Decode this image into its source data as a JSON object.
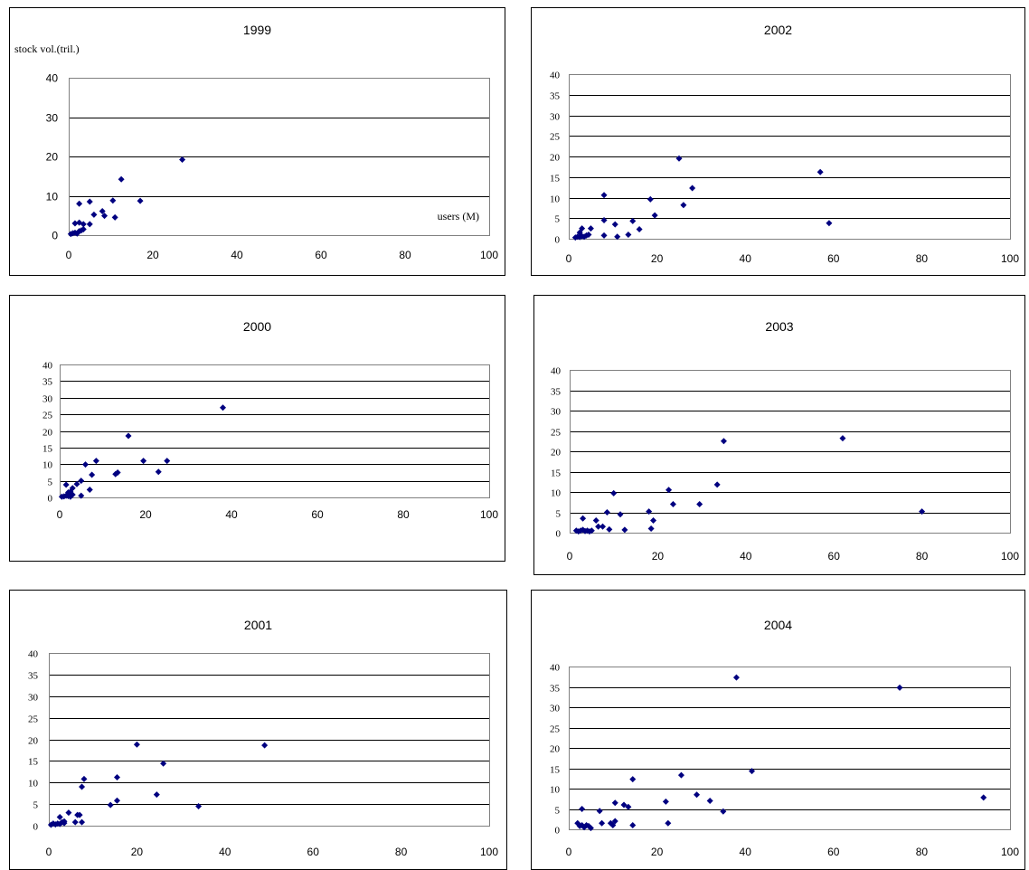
{
  "chart_data": [
    {
      "type": "scatter",
      "title": "1999",
      "ylabel": "stock vol.(tril.)",
      "xlabel": "users (M)",
      "xlim": [
        0,
        100
      ],
      "ylim": [
        0,
        40
      ],
      "x_ticks": [
        "0",
        "20",
        "40",
        "60",
        "80",
        "100"
      ],
      "y_ticks": [
        "0",
        "10",
        "20",
        "30",
        "40"
      ],
      "grid": true,
      "points": [
        [
          0.5,
          0.3
        ],
        [
          1,
          0.5
        ],
        [
          1.5,
          0.6
        ],
        [
          2,
          0.4
        ],
        [
          2.5,
          1
        ],
        [
          3,
          1.2
        ],
        [
          3.5,
          1.5
        ],
        [
          1.5,
          3
        ],
        [
          2.5,
          3.2
        ],
        [
          3.5,
          2.8
        ],
        [
          2.5,
          8
        ],
        [
          5,
          8.5
        ],
        [
          5,
          2.8
        ],
        [
          6,
          5.2
        ],
        [
          8,
          6.1
        ],
        [
          8.5,
          4.9
        ],
        [
          10.5,
          8.8
        ],
        [
          11,
          4.5
        ],
        [
          12.5,
          14.2
        ],
        [
          17,
          8.7
        ],
        [
          27,
          19.2
        ]
      ]
    },
    {
      "type": "scatter",
      "title": "2002",
      "xlim": [
        0,
        100
      ],
      "ylim": [
        0,
        40
      ],
      "x_ticks": [
        "0",
        "20",
        "40",
        "60",
        "80",
        "100"
      ],
      "y_ticks": [
        "0",
        "5",
        "10",
        "15",
        "20",
        "25",
        "30",
        "35",
        "40"
      ],
      "grid": true,
      "points": [
        [
          1.5,
          0.3
        ],
        [
          2,
          0.5
        ],
        [
          2.5,
          0.4
        ],
        [
          3,
          0.6
        ],
        [
          3.5,
          0.5
        ],
        [
          4,
          0.8
        ],
        [
          4.5,
          1
        ],
        [
          2.5,
          1.5
        ],
        [
          3,
          2.5
        ],
        [
          5,
          2.5
        ],
        [
          8,
          0.8
        ],
        [
          8,
          4.5
        ],
        [
          8,
          10.6
        ],
        [
          10.5,
          3.5
        ],
        [
          11,
          0.5
        ],
        [
          13.5,
          1
        ],
        [
          14.5,
          4.3
        ],
        [
          16,
          2.3
        ],
        [
          18.5,
          9.6
        ],
        [
          19.5,
          5.7
        ],
        [
          25,
          19.5
        ],
        [
          26,
          8.2
        ],
        [
          28,
          12.3
        ],
        [
          57,
          16.2
        ],
        [
          59,
          3.8
        ]
      ]
    },
    {
      "type": "scatter",
      "title": "2000",
      "xlim": [
        0,
        100
      ],
      "ylim": [
        0,
        40
      ],
      "x_ticks": [
        "0",
        "20",
        "40",
        "60",
        "80",
        "100"
      ],
      "y_ticks": [
        "0",
        "5",
        "10",
        "15",
        "20",
        "25",
        "30",
        "35",
        "40"
      ],
      "grid": true,
      "points": [
        [
          0.5,
          0.2
        ],
        [
          1,
          0.3
        ],
        [
          1.5,
          0.5
        ],
        [
          2,
          0.4
        ],
        [
          2.5,
          0.2
        ],
        [
          3,
          0.8
        ],
        [
          2,
          1.5
        ],
        [
          2.5,
          1.7
        ],
        [
          1.5,
          3.8
        ],
        [
          3,
          2.8
        ],
        [
          4,
          4
        ],
        [
          5,
          0.5
        ],
        [
          5,
          5
        ],
        [
          6,
          9.9
        ],
        [
          7,
          2.3
        ],
        [
          7.5,
          6.8
        ],
        [
          8.5,
          11
        ],
        [
          13,
          7
        ],
        [
          13.5,
          7.5
        ],
        [
          16,
          18.5
        ],
        [
          19.5,
          11
        ],
        [
          23,
          7.7
        ],
        [
          25,
          11
        ],
        [
          38,
          27
        ]
      ]
    },
    {
      "type": "scatter",
      "title": "2003",
      "xlim": [
        0,
        100
      ],
      "ylim": [
        0,
        40
      ],
      "x_ticks": [
        "0",
        "20",
        "40",
        "60",
        "80",
        "100"
      ],
      "y_ticks": [
        "0",
        "5",
        "10",
        "15",
        "20",
        "25",
        "30",
        "35",
        "40"
      ],
      "grid": true,
      "points": [
        [
          1.5,
          0.5
        ],
        [
          2,
          0.3
        ],
        [
          2.5,
          0.5
        ],
        [
          3,
          0.7
        ],
        [
          3.5,
          0.4
        ],
        [
          4,
          0.5
        ],
        [
          4.5,
          0.3
        ],
        [
          3,
          3.5
        ],
        [
          5,
          0.5
        ],
        [
          6,
          3
        ],
        [
          6.5,
          1.5
        ],
        [
          7.5,
          1.5
        ],
        [
          8.5,
          5
        ],
        [
          9,
          0.8
        ],
        [
          10,
          9.7
        ],
        [
          11.5,
          4.5
        ],
        [
          12.5,
          0.7
        ],
        [
          18,
          5.2
        ],
        [
          18.5,
          1
        ],
        [
          19,
          3
        ],
        [
          22.5,
          10.5
        ],
        [
          23.5,
          7
        ],
        [
          29.5,
          7
        ],
        [
          33.5,
          11.8
        ],
        [
          35,
          22.5
        ],
        [
          62,
          23.2
        ],
        [
          80,
          5.2
        ]
      ]
    },
    {
      "type": "scatter",
      "title": "2001",
      "xlim": [
        0,
        100
      ],
      "ylim": [
        0,
        40
      ],
      "x_ticks": [
        "0",
        "20",
        "40",
        "60",
        "80",
        "100"
      ],
      "y_ticks": [
        "0",
        "5",
        "10",
        "15",
        "20",
        "25",
        "30",
        "35",
        "40"
      ],
      "grid": true,
      "points": [
        [
          0.5,
          0.2
        ],
        [
          1,
          0.5
        ],
        [
          1.5,
          0.3
        ],
        [
          2,
          0.5
        ],
        [
          2.5,
          0.4
        ],
        [
          3,
          0.8
        ],
        [
          3.5,
          0.6
        ],
        [
          2.5,
          2
        ],
        [
          3.5,
          1
        ],
        [
          4.5,
          3
        ],
        [
          6,
          0.8
        ],
        [
          6.5,
          2.5
        ],
        [
          7.5,
          0.8
        ],
        [
          7,
          2.5
        ],
        [
          7.5,
          9
        ],
        [
          8,
          10.8
        ],
        [
          14,
          4.8
        ],
        [
          15.5,
          5.8
        ],
        [
          15.5,
          11.2
        ],
        [
          20,
          18.8
        ],
        [
          24.5,
          7.2
        ],
        [
          26,
          14.4
        ],
        [
          34,
          4.5
        ],
        [
          49,
          18.6
        ]
      ]
    },
    {
      "type": "scatter",
      "title": "2004",
      "xlim": [
        0,
        100
      ],
      "ylim": [
        0,
        40
      ],
      "x_ticks": [
        "0",
        "20",
        "40",
        "60",
        "80",
        "100"
      ],
      "y_ticks": [
        "0",
        "5",
        "10",
        "15",
        "20",
        "25",
        "30",
        "35",
        "40"
      ],
      "grid": true,
      "points": [
        [
          2,
          1.5
        ],
        [
          2.5,
          0.8
        ],
        [
          3,
          1
        ],
        [
          3.5,
          0.5
        ],
        [
          4,
          1
        ],
        [
          4.5,
          0.8
        ],
        [
          5,
          0.3
        ],
        [
          3,
          5
        ],
        [
          7,
          4.5
        ],
        [
          7.5,
          1.5
        ],
        [
          9.5,
          1.5
        ],
        [
          10,
          1
        ],
        [
          10.5,
          6.5
        ],
        [
          10.5,
          2
        ],
        [
          12.5,
          6
        ],
        [
          13.5,
          5.5
        ],
        [
          14.5,
          1
        ],
        [
          14.5,
          12.3
        ],
        [
          22,
          6.8
        ],
        [
          22.5,
          1.5
        ],
        [
          25.5,
          13.3
        ],
        [
          29,
          8.5
        ],
        [
          32,
          7
        ],
        [
          35,
          4.4
        ],
        [
          38,
          37.3
        ],
        [
          41.5,
          14.3
        ],
        [
          75,
          34.8
        ],
        [
          94,
          7.8
        ]
      ]
    }
  ]
}
